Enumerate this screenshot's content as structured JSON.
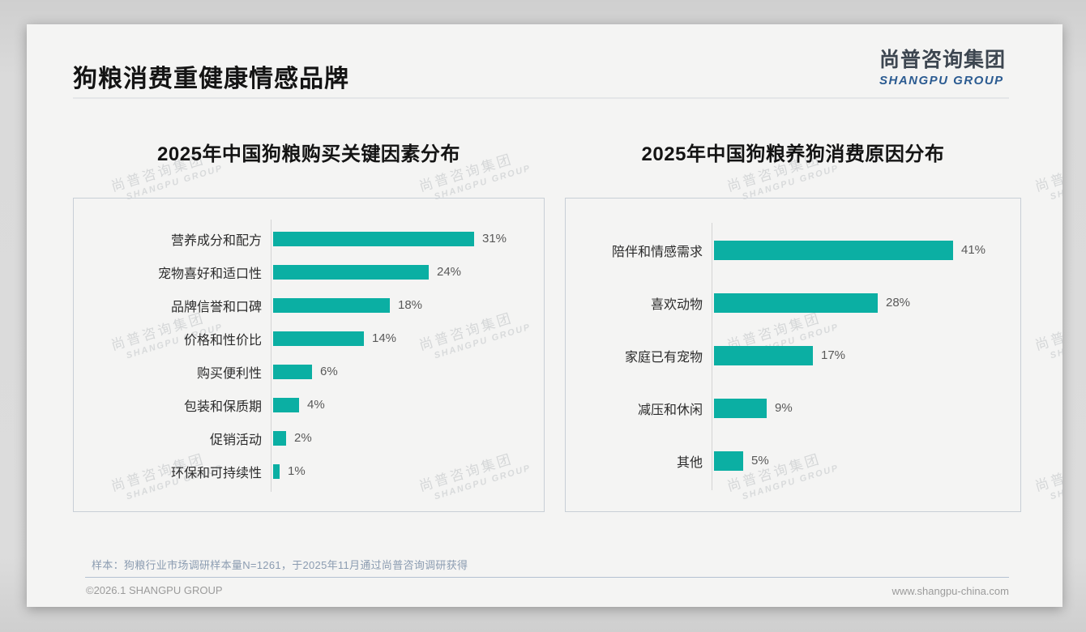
{
  "page": {
    "title": "狗粮消费重健康情感品牌",
    "logo": {
      "cn": "尚普咨询集团",
      "en": "SHANGPU GROUP"
    },
    "watermark": {
      "cn": "尚普咨询集团",
      "en": "SHANGPU GROUP"
    },
    "footer": {
      "sample_note": "样本：狗粮行业市场调研样本量N=1261，于2025年11月通过尚普咨询调研获得",
      "copyright": "©2026.1 SHANGPU GROUP",
      "website": "www.shangpu-china.com"
    },
    "colors": {
      "bar": "#0BAFA3",
      "logo_blue": "#2B5B91"
    }
  },
  "chart_data": [
    {
      "type": "bar",
      "orientation": "horizontal",
      "title": "2025年中国狗粮购买关键因素分布",
      "categories": [
        "营养成分和配方",
        "宠物喜好和适口性",
        "品牌信誉和口碑",
        "价格和性价比",
        "购买便利性",
        "包装和保质期",
        "促销活动",
        "环保和可持续性"
      ],
      "values": [
        31,
        24,
        18,
        14,
        6,
        4,
        2,
        1
      ],
      "unit": "%",
      "value_labels": [
        "31%",
        "24%",
        "18%",
        "14%",
        "6%",
        "4%",
        "2%",
        "1%"
      ],
      "xlim": [
        0,
        41
      ],
      "grid": false,
      "legend": false
    },
    {
      "type": "bar",
      "orientation": "horizontal",
      "title": "2025年中国狗粮养狗消费原因分布",
      "categories": [
        "陪伴和情感需求",
        "喜欢动物",
        "家庭已有宠物",
        "减压和休闲",
        "其他"
      ],
      "values": [
        41,
        28,
        17,
        9,
        5
      ],
      "unit": "%",
      "value_labels": [
        "41%",
        "28%",
        "17%",
        "9%",
        "5%"
      ],
      "xlim": [
        0,
        46
      ],
      "grid": false,
      "legend": false
    }
  ]
}
